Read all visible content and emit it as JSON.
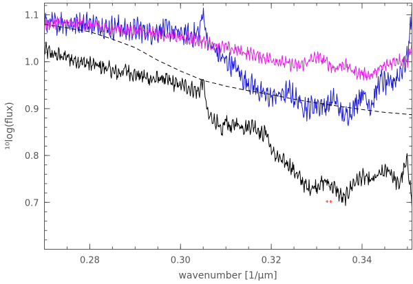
{
  "chart_data": {
    "type": "line",
    "xlabel": "wavenumber [1/μm]",
    "ylabel": "¹⁰log(flux)",
    "xlim": [
      0.27,
      0.351
    ],
    "ylim": [
      0.6,
      1.125
    ],
    "xticks": [
      "0.28",
      "0.30",
      "0.32",
      "0.34"
    ],
    "xtick_values": [
      0.28,
      0.3,
      0.32,
      0.34
    ],
    "yticks": [
      "0.7",
      "0.8",
      "0.9",
      "1.0",
      "1.1"
    ],
    "ytick_values": [
      0.7,
      0.8,
      0.9,
      1.0,
      1.1
    ],
    "grid": false,
    "colors": {
      "black": "#000000",
      "blue": "#1a1adc",
      "magenta": "#e61ee6",
      "dashed": "#000000",
      "points": "#ff3333",
      "axis": "#555555"
    },
    "series": [
      {
        "color": "black",
        "style": "solid",
        "x": [
          0.27,
          0.272,
          0.274,
          0.276,
          0.278,
          0.28,
          0.282,
          0.284,
          0.286,
          0.288,
          0.29,
          0.292,
          0.294,
          0.296,
          0.298,
          0.3,
          0.302,
          0.304,
          0.305,
          0.306,
          0.307,
          0.308,
          0.309,
          0.31,
          0.311,
          0.312,
          0.314,
          0.316,
          0.318,
          0.319,
          0.32,
          0.322,
          0.324,
          0.326,
          0.328,
          0.33,
          0.332,
          0.334,
          0.336,
          0.338,
          0.34,
          0.342,
          0.344,
          0.346,
          0.348,
          0.35,
          0.351
        ],
        "y": [
          1.025,
          1.015,
          1.012,
          1.005,
          1.0,
          0.995,
          0.99,
          0.985,
          0.975,
          0.982,
          0.972,
          0.968,
          0.962,
          0.965,
          0.955,
          0.95,
          0.945,
          0.935,
          0.96,
          0.885,
          0.88,
          0.87,
          0.845,
          0.88,
          0.855,
          0.87,
          0.86,
          0.865,
          0.845,
          0.85,
          0.81,
          0.79,
          0.78,
          0.755,
          0.73,
          0.735,
          0.745,
          0.73,
          0.705,
          0.74,
          0.755,
          0.745,
          0.76,
          0.77,
          0.735,
          0.79,
          0.7
        ],
        "noise": 0.012
      },
      {
        "color": "blue",
        "style": "solid",
        "x": [
          0.27,
          0.272,
          0.274,
          0.276,
          0.278,
          0.28,
          0.282,
          0.284,
          0.286,
          0.288,
          0.29,
          0.292,
          0.294,
          0.296,
          0.298,
          0.3,
          0.302,
          0.304,
          0.305,
          0.306,
          0.308,
          0.31,
          0.312,
          0.314,
          0.316,
          0.318,
          0.32,
          0.322,
          0.324,
          0.326,
          0.328,
          0.33,
          0.332,
          0.334,
          0.336,
          0.338,
          0.34,
          0.342,
          0.344,
          0.346,
          0.348,
          0.35,
          0.351
        ],
        "y": [
          1.085,
          1.08,
          1.085,
          1.08,
          1.085,
          1.08,
          1.08,
          1.07,
          1.075,
          1.065,
          1.07,
          1.065,
          1.06,
          1.07,
          1.065,
          1.06,
          1.055,
          1.06,
          1.105,
          1.04,
          1.02,
          1.0,
          0.99,
          0.96,
          0.95,
          0.93,
          0.925,
          0.93,
          0.935,
          0.915,
          0.9,
          0.91,
          0.905,
          0.92,
          0.88,
          0.9,
          0.935,
          0.905,
          0.96,
          0.95,
          0.97,
          1.01,
          1.11
        ],
        "noise": 0.018
      },
      {
        "color": "magenta",
        "style": "solid",
        "x": [
          0.27,
          0.272,
          0.274,
          0.276,
          0.278,
          0.28,
          0.282,
          0.284,
          0.286,
          0.288,
          0.29,
          0.292,
          0.294,
          0.296,
          0.298,
          0.3,
          0.302,
          0.304,
          0.306,
          0.308,
          0.31,
          0.312,
          0.314,
          0.316,
          0.318,
          0.32,
          0.322,
          0.324,
          0.326,
          0.328,
          0.33,
          0.332,
          0.334,
          0.336,
          0.338,
          0.34,
          0.342,
          0.344,
          0.346,
          0.348,
          0.35,
          0.351
        ],
        "y": [
          1.08,
          1.082,
          1.085,
          1.078,
          1.083,
          1.078,
          1.075,
          1.068,
          1.072,
          1.065,
          1.068,
          1.065,
          1.062,
          1.058,
          1.055,
          1.05,
          1.048,
          1.045,
          1.04,
          1.035,
          1.03,
          1.025,
          1.02,
          1.015,
          1.01,
          1.005,
          1.0,
          0.995,
          0.99,
          1.0,
          1.01,
          1.0,
          0.985,
          0.995,
          0.98,
          0.975,
          0.97,
          0.985,
          0.995,
          1.005,
          1.0,
          1.04
        ],
        "noise": 0.01
      },
      {
        "color": "dashed",
        "style": "dashed",
        "x": [
          0.27,
          0.275,
          0.28,
          0.285,
          0.29,
          0.295,
          0.3,
          0.305,
          0.31,
          0.315,
          0.32,
          0.325,
          0.33,
          0.335,
          0.34,
          0.345,
          0.35,
          0.351
        ],
        "y": [
          1.08,
          1.072,
          1.064,
          1.048,
          1.03,
          1.003,
          0.98,
          0.96,
          0.948,
          0.938,
          0.93,
          0.92,
          0.912,
          0.905,
          0.898,
          0.892,
          0.888,
          0.887
        ],
        "noise": 0
      }
    ],
    "markers": [
      {
        "color": "points",
        "x": 0.3323,
        "y": 0.702
      },
      {
        "color": "points",
        "x": 0.3331,
        "y": 0.702
      }
    ]
  }
}
